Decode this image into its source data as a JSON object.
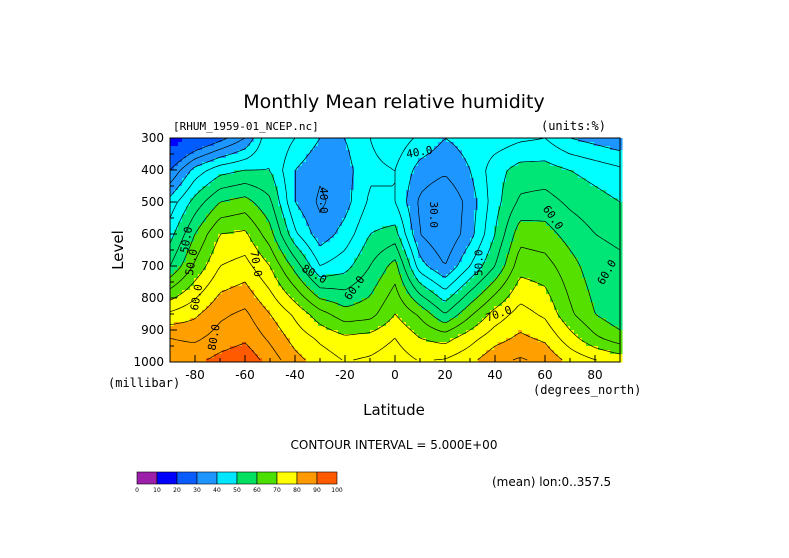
{
  "chart_data": {
    "type": "heatmap",
    "title": "Monthly Mean relative humidity",
    "file_label": "[RHUM_1959-01_NCEP.nc]",
    "units_label": "(units:%)",
    "xlabel": "Latitude",
    "ylabel": "Level",
    "x_units": "(degrees_north)",
    "y_units": "(millibar)",
    "xlim": [
      -90,
      90
    ],
    "ylim": [
      1000,
      300
    ],
    "x_ticks": [
      -80,
      -60,
      -40,
      -20,
      0,
      20,
      40,
      60,
      80
    ],
    "y_ticks": [
      300,
      400,
      500,
      600,
      700,
      800,
      900,
      1000
    ],
    "contour_interval_text": "CONTOUR INTERVAL = 5.000E+00",
    "subset_text": "(mean) lon:0..357.5",
    "latitudes": [
      -90,
      -80,
      -70,
      -60,
      -50,
      -40,
      -30,
      -20,
      -10,
      0,
      10,
      20,
      30,
      40,
      50,
      60,
      70,
      80,
      90
    ],
    "levels": [
      1000,
      925,
      850,
      700,
      600,
      500,
      400,
      300
    ],
    "values": [
      [
        88,
        89,
        92,
        94,
        88,
        82,
        78,
        75,
        76,
        78,
        75,
        76,
        79,
        84,
        86,
        84,
        79,
        76,
        74
      ],
      [
        85,
        84,
        87,
        89,
        84,
        78,
        74,
        71,
        72,
        75,
        70,
        68,
        73,
        78,
        81,
        79,
        72,
        66,
        62
      ],
      [
        76,
        79,
        84,
        86,
        80,
        74,
        67,
        62,
        63,
        70,
        64,
        55,
        64,
        72,
        77,
        74,
        66,
        60,
        56
      ],
      [
        55,
        66,
        75,
        77,
        70,
        58,
        45,
        48,
        55,
        62,
        42,
        35,
        45,
        55,
        68,
        67,
        62,
        57,
        56
      ],
      [
        48,
        60,
        70,
        71,
        62,
        46,
        37,
        42,
        50,
        52,
        35,
        30,
        38,
        50,
        63,
        62,
        58,
        55,
        54
      ],
      [
        42,
        52,
        60,
        62,
        56,
        40,
        34,
        38,
        46,
        45,
        34,
        30,
        37,
        48,
        56,
        57,
        54,
        52,
        50
      ],
      [
        30,
        42,
        48,
        50,
        50,
        40,
        36,
        38,
        44,
        45,
        38,
        36,
        40,
        48,
        52,
        52,
        50,
        48,
        46
      ],
      [
        15,
        22,
        28,
        35,
        50,
        45,
        40,
        40,
        45,
        48,
        44,
        40,
        42,
        42,
        44,
        45,
        40,
        38,
        36
      ]
    ],
    "contour_labels": [
      "40.0",
      "40.0",
      "30.0",
      "50.0",
      "50.0",
      "60.0",
      "60.0",
      "60.0",
      "60.0",
      "70.0",
      "70.0",
      "80.0",
      "80.0",
      "50.0"
    ],
    "colorbar": {
      "bounds": [
        0,
        10,
        20,
        30,
        40,
        50,
        60,
        70,
        80,
        90,
        100
      ],
      "colors": [
        "#9b1fa8",
        "#0000ff",
        "#0b5cff",
        "#1e96ff",
        "#00e6ff",
        "#00e060",
        "#4be000",
        "#ffff00",
        "#ff9900",
        "#ff5a00",
        "#ff0000"
      ]
    },
    "level_colors": [
      "#7a1fb0",
      "#0000ff",
      "#005cff",
      "#1e96ff",
      "#00ffff",
      "#00e676",
      "#55e000",
      "#ffff00",
      "#ffa000",
      "#ff5a00",
      "#ff0000"
    ]
  }
}
